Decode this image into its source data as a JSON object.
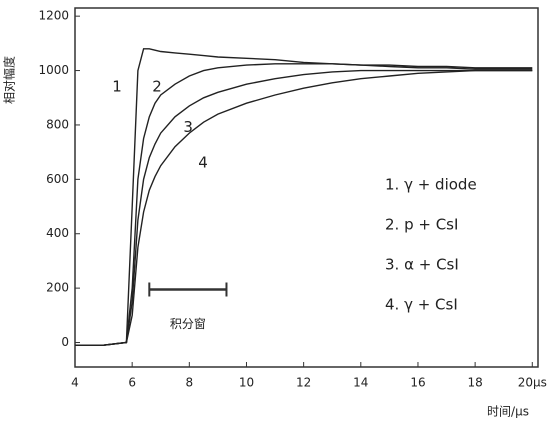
{
  "chart_data": {
    "type": "line",
    "y_label": "相对幅度",
    "x_label": "时间/µs",
    "xlim": [
      4,
      20.2
    ],
    "ylim": [
      -90,
      1230
    ],
    "xticks": [
      4,
      6,
      8,
      10,
      12,
      14,
      16,
      18,
      {
        "value": 20,
        "label": "20µs"
      }
    ],
    "yticks": [
      0,
      200,
      400,
      600,
      800,
      1000,
      1200
    ],
    "x": [
      4,
      5,
      5.8,
      6,
      6.2,
      6.4,
      6.6,
      6.8,
      7,
      7.5,
      8,
      8.5,
      9,
      10,
      11,
      12,
      13,
      14,
      15,
      16,
      17,
      18,
      19,
      20
    ],
    "series": [
      {
        "name": "1.  γ + diode",
        "color": "#222",
        "values": [
          -10,
          -10,
          0,
          500,
          1000,
          1080,
          1080,
          1075,
          1070,
          1065,
          1060,
          1055,
          1050,
          1045,
          1040,
          1030,
          1025,
          1020,
          1015,
          1010,
          1010,
          1005,
          1005,
          1005
        ]
      },
      {
        "name": "2.  p + CsI",
        "color": "#222",
        "values": [
          -10,
          -10,
          0,
          200,
          600,
          750,
          830,
          880,
          910,
          950,
          980,
          1000,
          1010,
          1020,
          1025,
          1025,
          1025,
          1020,
          1020,
          1015,
          1015,
          1010,
          1010,
          1010
        ]
      },
      {
        "name": "3.  α + CsI",
        "color": "#222",
        "values": [
          -10,
          -10,
          0,
          150,
          450,
          600,
          680,
          730,
          770,
          830,
          870,
          900,
          920,
          950,
          970,
          985,
          995,
          1000,
          1000,
          1000,
          1000,
          1000,
          1000,
          1000
        ]
      },
      {
        "name": "4.  γ + CsI",
        "color": "#222",
        "values": [
          -10,
          -10,
          0,
          100,
          350,
          480,
          560,
          610,
          650,
          720,
          770,
          810,
          840,
          880,
          910,
          935,
          955,
          970,
          980,
          990,
          995,
          1000,
          1000,
          1000
        ]
      }
    ],
    "curve_labels": [
      {
        "text": "1",
        "x": 5.47,
        "y": 940
      },
      {
        "text": "2",
        "x": 6.87,
        "y": 940
      },
      {
        "text": "3",
        "x": 7.96,
        "y": 790
      },
      {
        "text": "4",
        "x": 8.48,
        "y": 660
      }
    ],
    "window": {
      "text": "积分窗",
      "x": [
        6.6,
        9.3
      ],
      "y": 195
    }
  }
}
